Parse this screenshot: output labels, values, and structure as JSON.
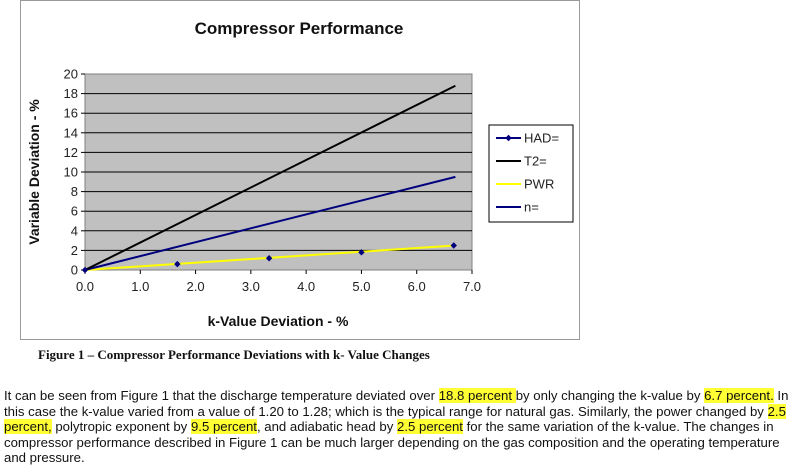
{
  "chart_data": {
    "type": "line",
    "title": "Compressor Performance",
    "xlabel": "k-Value Deviation - %",
    "ylabel": "Variable Deviation - %",
    "xlim": [
      0,
      7.0
    ],
    "ylim": [
      0,
      20
    ],
    "x_ticks": [
      "0.0",
      "1.0",
      "2.0",
      "3.0",
      "4.0",
      "5.0",
      "6.0",
      "7.0"
    ],
    "y_ticks": [
      "0",
      "2",
      "4",
      "6",
      "8",
      "10",
      "12",
      "14",
      "16",
      "18",
      "20"
    ],
    "grid": true,
    "legend_position": "right",
    "plot_background": "#c0c0c0",
    "series": [
      {
        "name": "HAD=",
        "style": "markers",
        "color": "#00007f",
        "x": [
          0,
          1.67,
          3.33,
          5.0,
          6.67
        ],
        "y": [
          0,
          0.6,
          1.2,
          1.8,
          2.5
        ]
      },
      {
        "name": "T2=",
        "style": "line",
        "color": "#000000",
        "x": [
          0,
          6.7
        ],
        "y": [
          0,
          18.8
        ]
      },
      {
        "name": "PWR",
        "style": "line",
        "color": "#ffff00",
        "x": [
          0,
          6.7
        ],
        "y": [
          0,
          2.5
        ]
      },
      {
        "name": "n=",
        "style": "line",
        "color": "#00007f",
        "x": [
          0,
          6.7
        ],
        "y": [
          0,
          9.5
        ]
      }
    ]
  },
  "caption": "Figure 1 – Compressor Performance Deviations with k- Value Changes",
  "paragraph": [
    {
      "text": "It can be seen from Figure 1 that the discharge temperature deviated over ",
      "hl": false
    },
    {
      "text": "18.8 percent ",
      "hl": true
    },
    {
      "text": "by only changing the k-value by ",
      "hl": false
    },
    {
      "text": "6.7 percent.",
      "hl": true
    },
    {
      "text": "  In this case the k-value varied from a value of 1.20 to 1.28; which is the typical range for natural gas. Similarly, the power changed by ",
      "hl": false
    },
    {
      "text": "2.5 percent,",
      "hl": true
    },
    {
      "text": " polytropic exponent by ",
      "hl": false
    },
    {
      "text": "9.5 percent",
      "hl": true
    },
    {
      "text": ", and adiabatic head by ",
      "hl": false
    },
    {
      "text": "2.5 percent",
      "hl": true
    },
    {
      "text": " for the same variation of the k-value.  The changes in compressor performance described in Figure 1 can be much larger depending on the gas composition and the operating temperature and pressure.",
      "hl": false
    }
  ]
}
